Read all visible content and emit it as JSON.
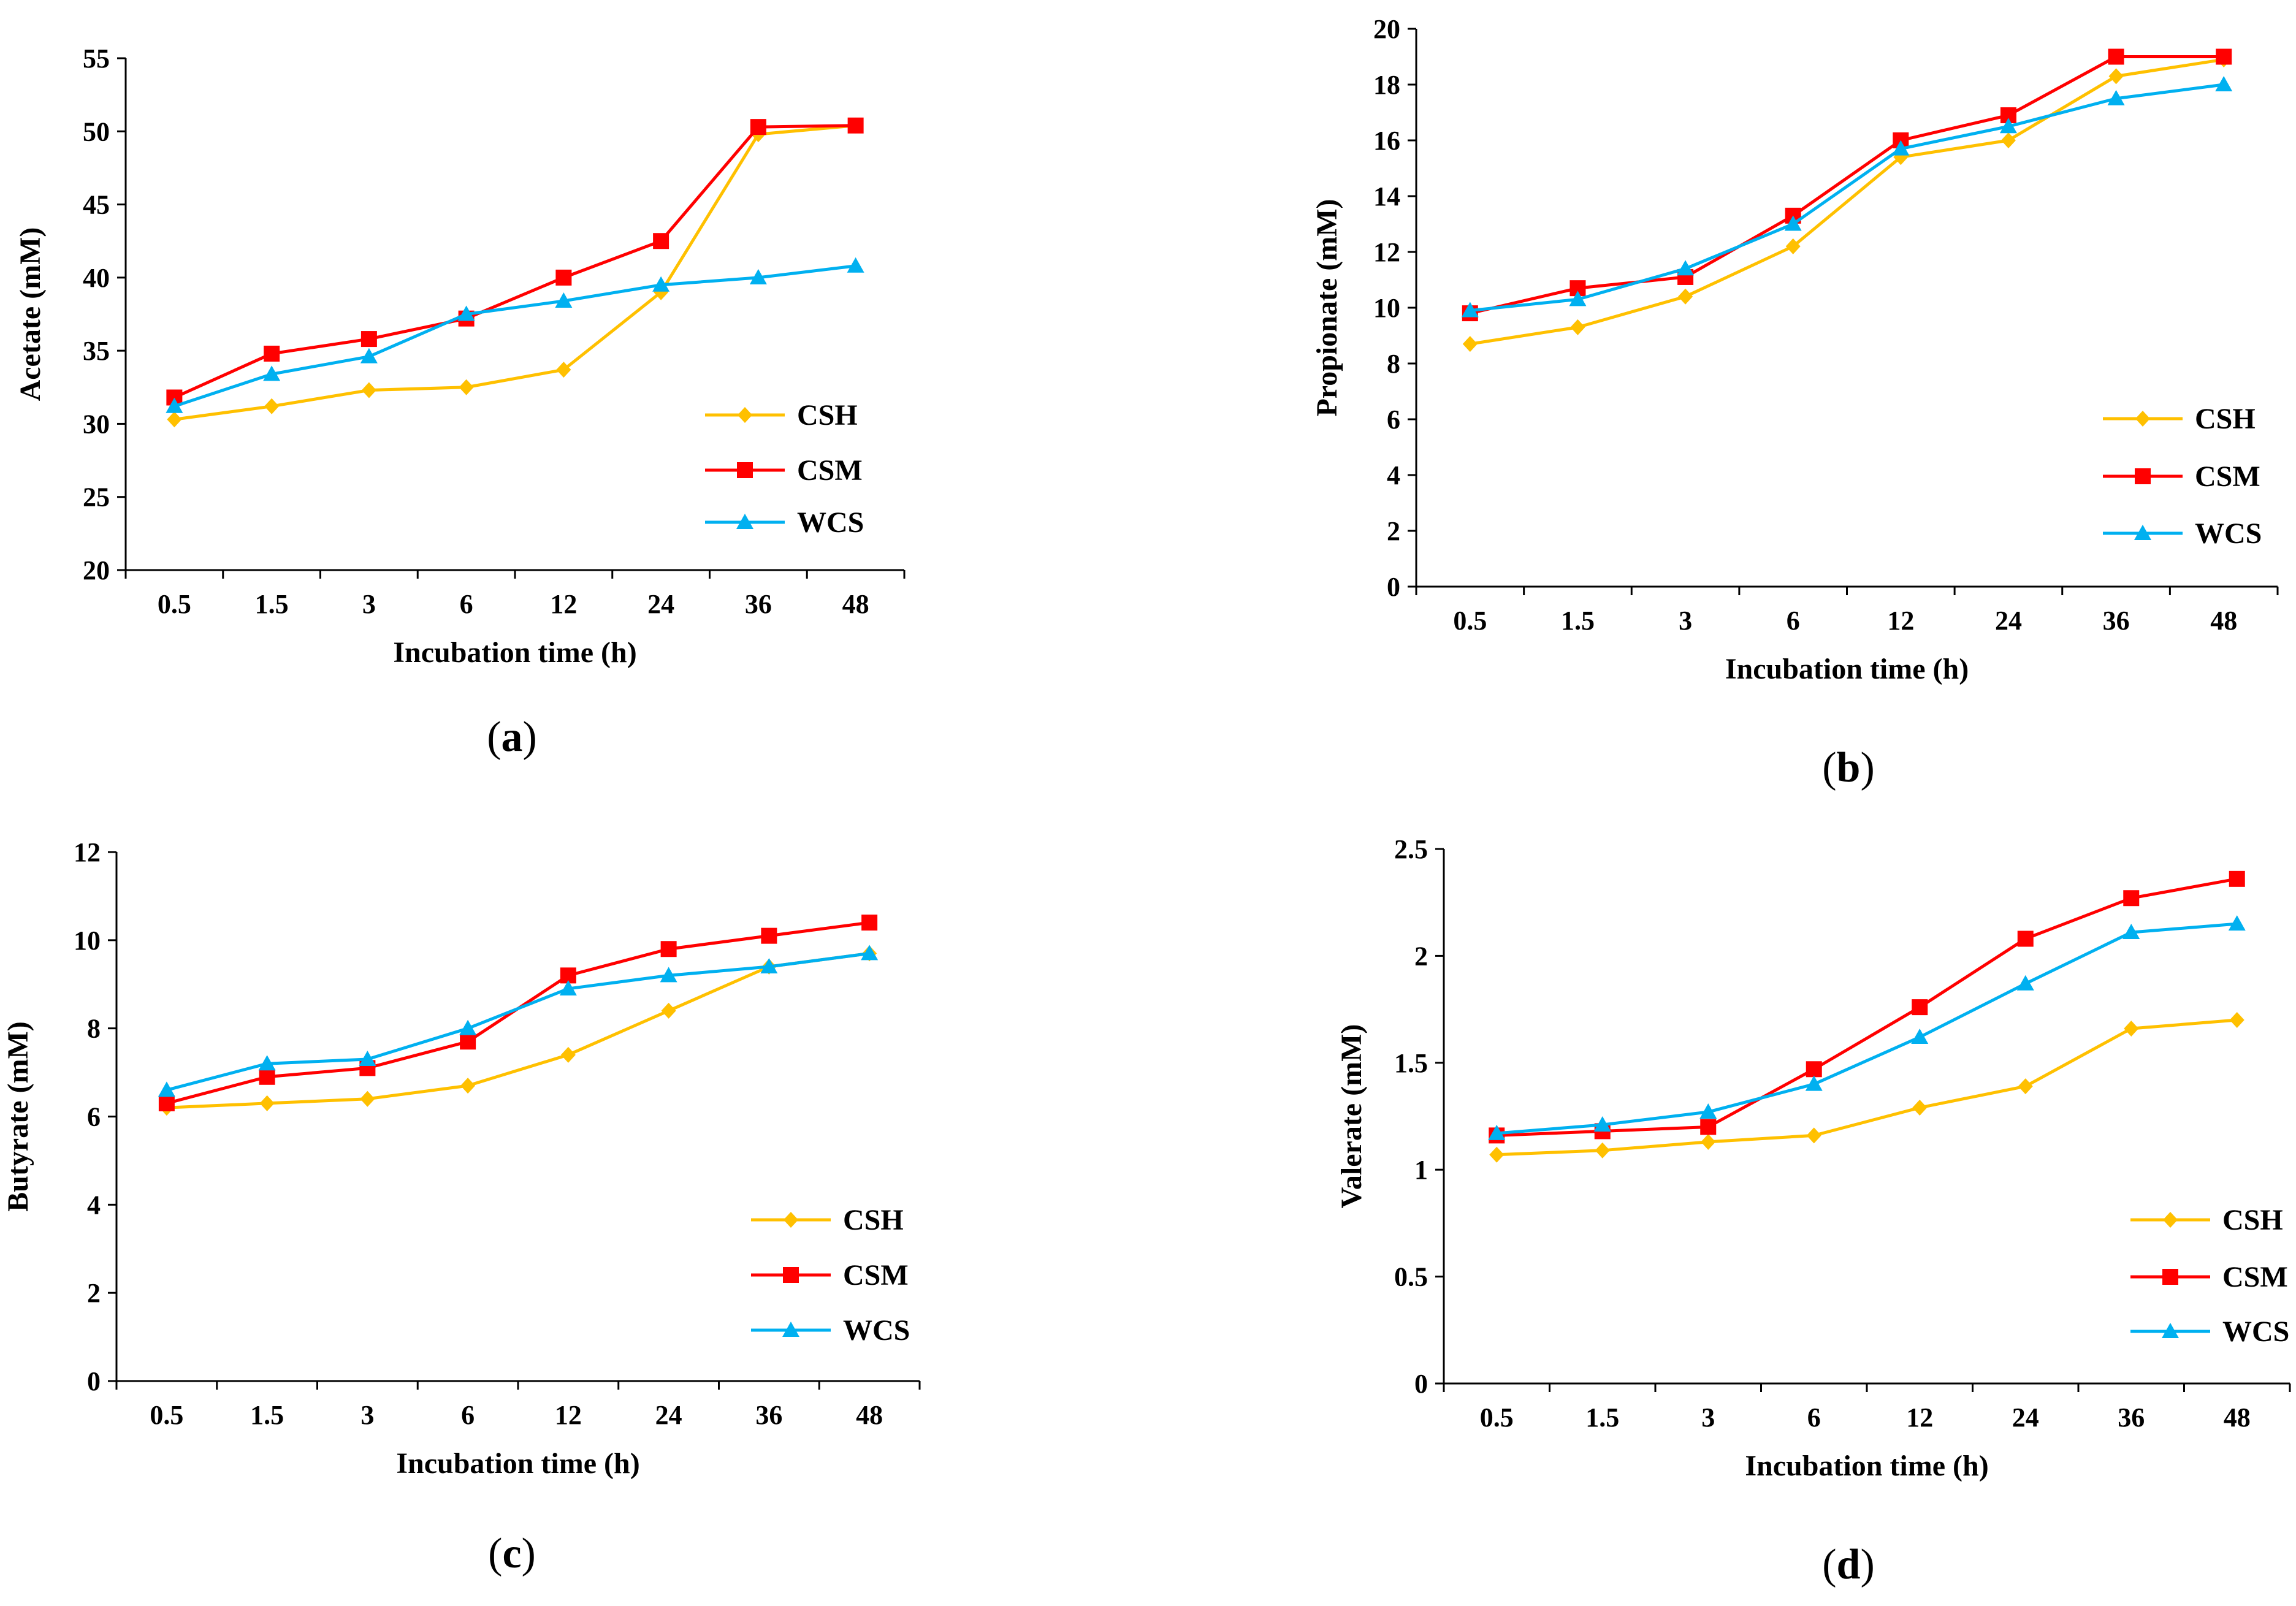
{
  "colors": {
    "CSH": "#FFC000",
    "CSM": "#FF0000",
    "WCS": "#00B0F0",
    "axis": "#000000"
  },
  "chart_data": [
    {
      "type": "line",
      "panel_label": "(a)",
      "categories": [
        "0.5",
        "1.5",
        "3",
        "6",
        "12",
        "24",
        "36",
        "48"
      ],
      "xlabel": "Incubation time (h)",
      "ylabel": "Acetate (mM)",
      "ylim": [
        20,
        55
      ],
      "yticks": [
        20,
        25,
        30,
        35,
        40,
        45,
        50,
        55
      ],
      "ytick_labels": [
        "20",
        "25",
        "30",
        "35",
        "40",
        "45",
        "50",
        "55"
      ],
      "series": [
        {
          "name": "CSH",
          "marker": "diamond",
          "values": [
            30.3,
            31.2,
            32.3,
            32.5,
            33.7,
            39.0,
            49.8,
            50.4
          ]
        },
        {
          "name": "CSM",
          "marker": "square",
          "values": [
            31.8,
            34.8,
            35.8,
            37.2,
            40.0,
            42.5,
            50.3,
            50.4
          ]
        },
        {
          "name": "WCS",
          "marker": "triangle",
          "values": [
            31.2,
            33.4,
            34.6,
            37.5,
            38.4,
            39.5,
            40.0,
            40.8
          ]
        }
      ],
      "legend": "right"
    },
    {
      "type": "line",
      "panel_label": "(b)",
      "categories": [
        "0.5",
        "1.5",
        "3",
        "6",
        "12",
        "24",
        "36",
        "48"
      ],
      "xlabel": "Incubation time (h)",
      "ylabel": "Propionate (mM)",
      "ylim": [
        0,
        20
      ],
      "yticks": [
        0,
        2,
        4,
        6,
        8,
        10,
        12,
        14,
        16,
        18,
        20
      ],
      "ytick_labels": [
        "0",
        "2",
        "4",
        "6",
        "8",
        "10",
        "12",
        "14",
        "16",
        "18",
        "20"
      ],
      "series": [
        {
          "name": "CSH",
          "marker": "diamond",
          "values": [
            8.7,
            9.3,
            10.4,
            12.2,
            15.4,
            16.0,
            18.3,
            18.9
          ]
        },
        {
          "name": "CSM",
          "marker": "square",
          "values": [
            9.8,
            10.7,
            11.1,
            13.3,
            16.0,
            16.9,
            19.0,
            19.0
          ]
        },
        {
          "name": "WCS",
          "marker": "triangle",
          "values": [
            9.9,
            10.3,
            11.4,
            13.0,
            15.7,
            16.5,
            17.5,
            18.0
          ]
        }
      ],
      "legend": "right"
    },
    {
      "type": "line",
      "panel_label": "(c)",
      "categories": [
        "0.5",
        "1.5",
        "3",
        "6",
        "12",
        "24",
        "36",
        "48"
      ],
      "xlabel": "Incubation time (h)",
      "ylabel": "Butyrate (mM)",
      "ylim": [
        0,
        12
      ],
      "yticks": [
        0,
        2,
        4,
        6,
        8,
        10,
        12
      ],
      "ytick_labels": [
        "0",
        "2",
        "4",
        "6",
        "8",
        "10",
        "12"
      ],
      "series": [
        {
          "name": "CSH",
          "marker": "diamond",
          "values": [
            6.2,
            6.3,
            6.4,
            6.7,
            7.4,
            8.4,
            9.4,
            9.7
          ]
        },
        {
          "name": "CSM",
          "marker": "square",
          "values": [
            6.3,
            6.9,
            7.1,
            7.7,
            9.2,
            9.8,
            10.1,
            10.4
          ]
        },
        {
          "name": "WCS",
          "marker": "triangle",
          "values": [
            6.6,
            7.2,
            7.3,
            8.0,
            8.9,
            9.2,
            9.4,
            9.7
          ]
        }
      ],
      "legend": "right"
    },
    {
      "type": "line",
      "panel_label": "(d)",
      "categories": [
        "0.5",
        "1.5",
        "3",
        "6",
        "12",
        "24",
        "36",
        "48"
      ],
      "xlabel": "Incubation time (h)",
      "ylabel": "Valerate (mM)",
      "ylim": [
        0,
        2.5
      ],
      "yticks": [
        0,
        0.5,
        1,
        1.5,
        2,
        2.5
      ],
      "ytick_labels": [
        "0",
        "0.5",
        "1",
        "1.5",
        "2",
        "2.5"
      ],
      "series": [
        {
          "name": "CSH",
          "marker": "diamond",
          "values": [
            1.07,
            1.09,
            1.13,
            1.16,
            1.29,
            1.39,
            1.66,
            1.7
          ]
        },
        {
          "name": "CSM",
          "marker": "square",
          "values": [
            1.16,
            1.18,
            1.2,
            1.47,
            1.76,
            2.08,
            2.27,
            2.36
          ]
        },
        {
          "name": "WCS",
          "marker": "triangle",
          "values": [
            1.17,
            1.21,
            1.27,
            1.4,
            1.62,
            1.87,
            2.11,
            2.15
          ]
        }
      ],
      "legend": "right"
    }
  ]
}
